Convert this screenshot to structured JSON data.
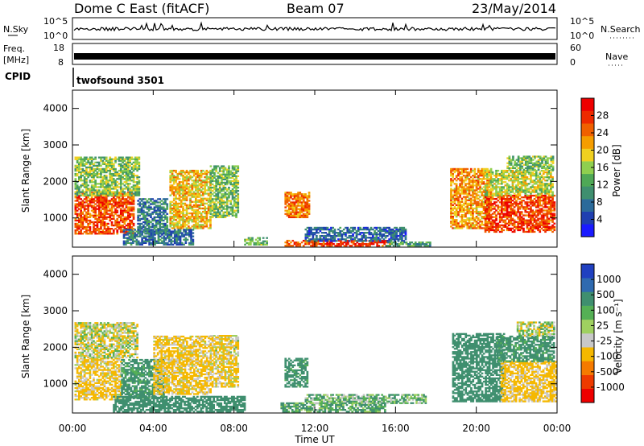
{
  "header": {
    "station": "Dome C East (fitACF)",
    "beam": "Beam 07",
    "date": "23/May/2014"
  },
  "strips": {
    "nsky": {
      "label": "N.Sky",
      "ticks": [
        "10^5",
        "10^0"
      ],
      "right_label": "N.Search",
      "right_ticks": [
        "10^5",
        "10^0"
      ]
    },
    "freq": {
      "label_line1": "Freq.",
      "label_line2": "[MHz]",
      "ticks": [
        "18",
        "8"
      ],
      "right_label": "Nave",
      "right_ticks": [
        "60",
        "0"
      ]
    },
    "cpid": {
      "label": "CPID",
      "value": "twofsound 3501"
    }
  },
  "colors": {
    "power_scale": [
      "#1a1aff",
      "#1f3fb0",
      "#2b6a9a",
      "#3f8f6f",
      "#4fa856",
      "#8fcf4f",
      "#f0d020",
      "#f59d00",
      "#f06000",
      "#ee2a00",
      "#ee0000"
    ],
    "velocity_scale": [
      "#2040c0",
      "#2f6ab0",
      "#3f8f6f",
      "#55b055",
      "#9fd060",
      "#c8c8c8",
      "#f5b800",
      "#f57a00",
      "#ee3a00",
      "#ee0000"
    ]
  },
  "chart_data": [
    {
      "type": "heatmap",
      "panel": "power",
      "xlabel": "",
      "ylabel": "Slant Range [km]",
      "x_ticks": [
        "00:00",
        "04:00",
        "08:00",
        "12:00",
        "16:00",
        "20:00",
        "00:00"
      ],
      "x_range_hours": [
        0,
        24
      ],
      "y_ticks": [
        1000,
        2000,
        3000,
        4000
      ],
      "y_range_km": [
        200,
        4500
      ],
      "colorbar": {
        "label": "Power [dB]",
        "ticks": [
          "28",
          "24",
          "20",
          "16",
          "12",
          "8",
          "4"
        ],
        "range": [
          0,
          32
        ]
      },
      "regions": [
        {
          "t0": 0.1,
          "t1": 3.0,
          "r0": 550,
          "r1": 1700,
          "value": 26
        },
        {
          "t0": 0.1,
          "t1": 3.3,
          "r0": 1600,
          "r1": 2650,
          "value": 15
        },
        {
          "t0": 3.2,
          "t1": 4.7,
          "r0": 550,
          "r1": 1500,
          "value": 9
        },
        {
          "t0": 4.8,
          "t1": 6.8,
          "r0": 700,
          "r1": 2300,
          "value": 20
        },
        {
          "t0": 6.8,
          "t1": 8.2,
          "r0": 1000,
          "r1": 2400,
          "value": 14
        },
        {
          "t0": 2.5,
          "t1": 6.0,
          "r0": 250,
          "r1": 700,
          "value": 8
        },
        {
          "t0": 8.5,
          "t1": 9.6,
          "r0": 250,
          "r1": 450,
          "value": 14
        },
        {
          "t0": 10.5,
          "t1": 11.7,
          "r0": 1000,
          "r1": 1700,
          "value": 24
        },
        {
          "t0": 10.5,
          "t1": 12.7,
          "r0": 220,
          "r1": 380,
          "value": 26
        },
        {
          "t0": 12.7,
          "t1": 15.7,
          "r0": 220,
          "r1": 380,
          "value": 28
        },
        {
          "t0": 11.5,
          "t1": 16.5,
          "r0": 350,
          "r1": 750,
          "value": 7
        },
        {
          "t0": 15.5,
          "t1": 17.7,
          "r0": 220,
          "r1": 350,
          "value": 12
        },
        {
          "t0": 18.7,
          "t1": 20.7,
          "r0": 700,
          "r1": 2350,
          "value": 22
        },
        {
          "t0": 20.4,
          "t1": 23.9,
          "r0": 600,
          "r1": 1600,
          "value": 27
        },
        {
          "t0": 20.4,
          "t1": 23.8,
          "r0": 1600,
          "r1": 2300,
          "value": 17
        },
        {
          "t0": 21.5,
          "t1": 23.8,
          "r0": 2300,
          "r1": 2700,
          "value": 14
        }
      ]
    },
    {
      "type": "heatmap",
      "panel": "velocity",
      "xlabel": "Time UT",
      "ylabel": "Slant Range [km]",
      "x_ticks": [
        "00:00",
        "04:00",
        "08:00",
        "12:00",
        "16:00",
        "20:00",
        "00:00"
      ],
      "x_range_hours": [
        0,
        24
      ],
      "y_ticks": [
        1000,
        2000,
        3000,
        4000
      ],
      "y_range_km": [
        200,
        4500
      ],
      "colorbar": {
        "label": "Velocity [m s⁻¹]",
        "ticks": [
          "1000",
          "500",
          "100",
          "25",
          "-25",
          "-100",
          "-500",
          "-1000"
        ],
        "range": [
          -1500,
          1500
        ]
      },
      "regions": [
        {
          "t0": 0.1,
          "t1": 2.4,
          "r0": 550,
          "r1": 1700,
          "value": -150
        },
        {
          "t0": 0.1,
          "t1": 3.2,
          "r0": 1700,
          "r1": 2650,
          "value": -60
        },
        {
          "t0": 2.4,
          "t1": 4.5,
          "r0": 600,
          "r1": 1650,
          "value": 180
        },
        {
          "t0": 4.0,
          "t1": 6.8,
          "r0": 700,
          "r1": 2300,
          "value": -150
        },
        {
          "t0": 6.8,
          "t1": 8.2,
          "r0": 900,
          "r1": 2300,
          "value": -120
        },
        {
          "t0": 2.0,
          "t1": 8.5,
          "r0": 220,
          "r1": 650,
          "value": 250
        },
        {
          "t0": 10.5,
          "t1": 11.6,
          "r0": 900,
          "r1": 1700,
          "value": 220
        },
        {
          "t0": 10.3,
          "t1": 15.5,
          "r0": 220,
          "r1": 450,
          "value": 120
        },
        {
          "t0": 11.5,
          "t1": 17.5,
          "r0": 450,
          "r1": 700,
          "value": 60
        },
        {
          "t0": 18.8,
          "t1": 21.4,
          "r0": 500,
          "r1": 2350,
          "value": 250
        },
        {
          "t0": 21.2,
          "t1": 23.9,
          "r0": 500,
          "r1": 1600,
          "value": -180
        },
        {
          "t0": 21.0,
          "t1": 23.8,
          "r0": 1600,
          "r1": 2300,
          "value": 200
        },
        {
          "t0": 22.0,
          "t1": 23.8,
          "r0": 2300,
          "r1": 2700,
          "value": -30
        }
      ]
    }
  ]
}
